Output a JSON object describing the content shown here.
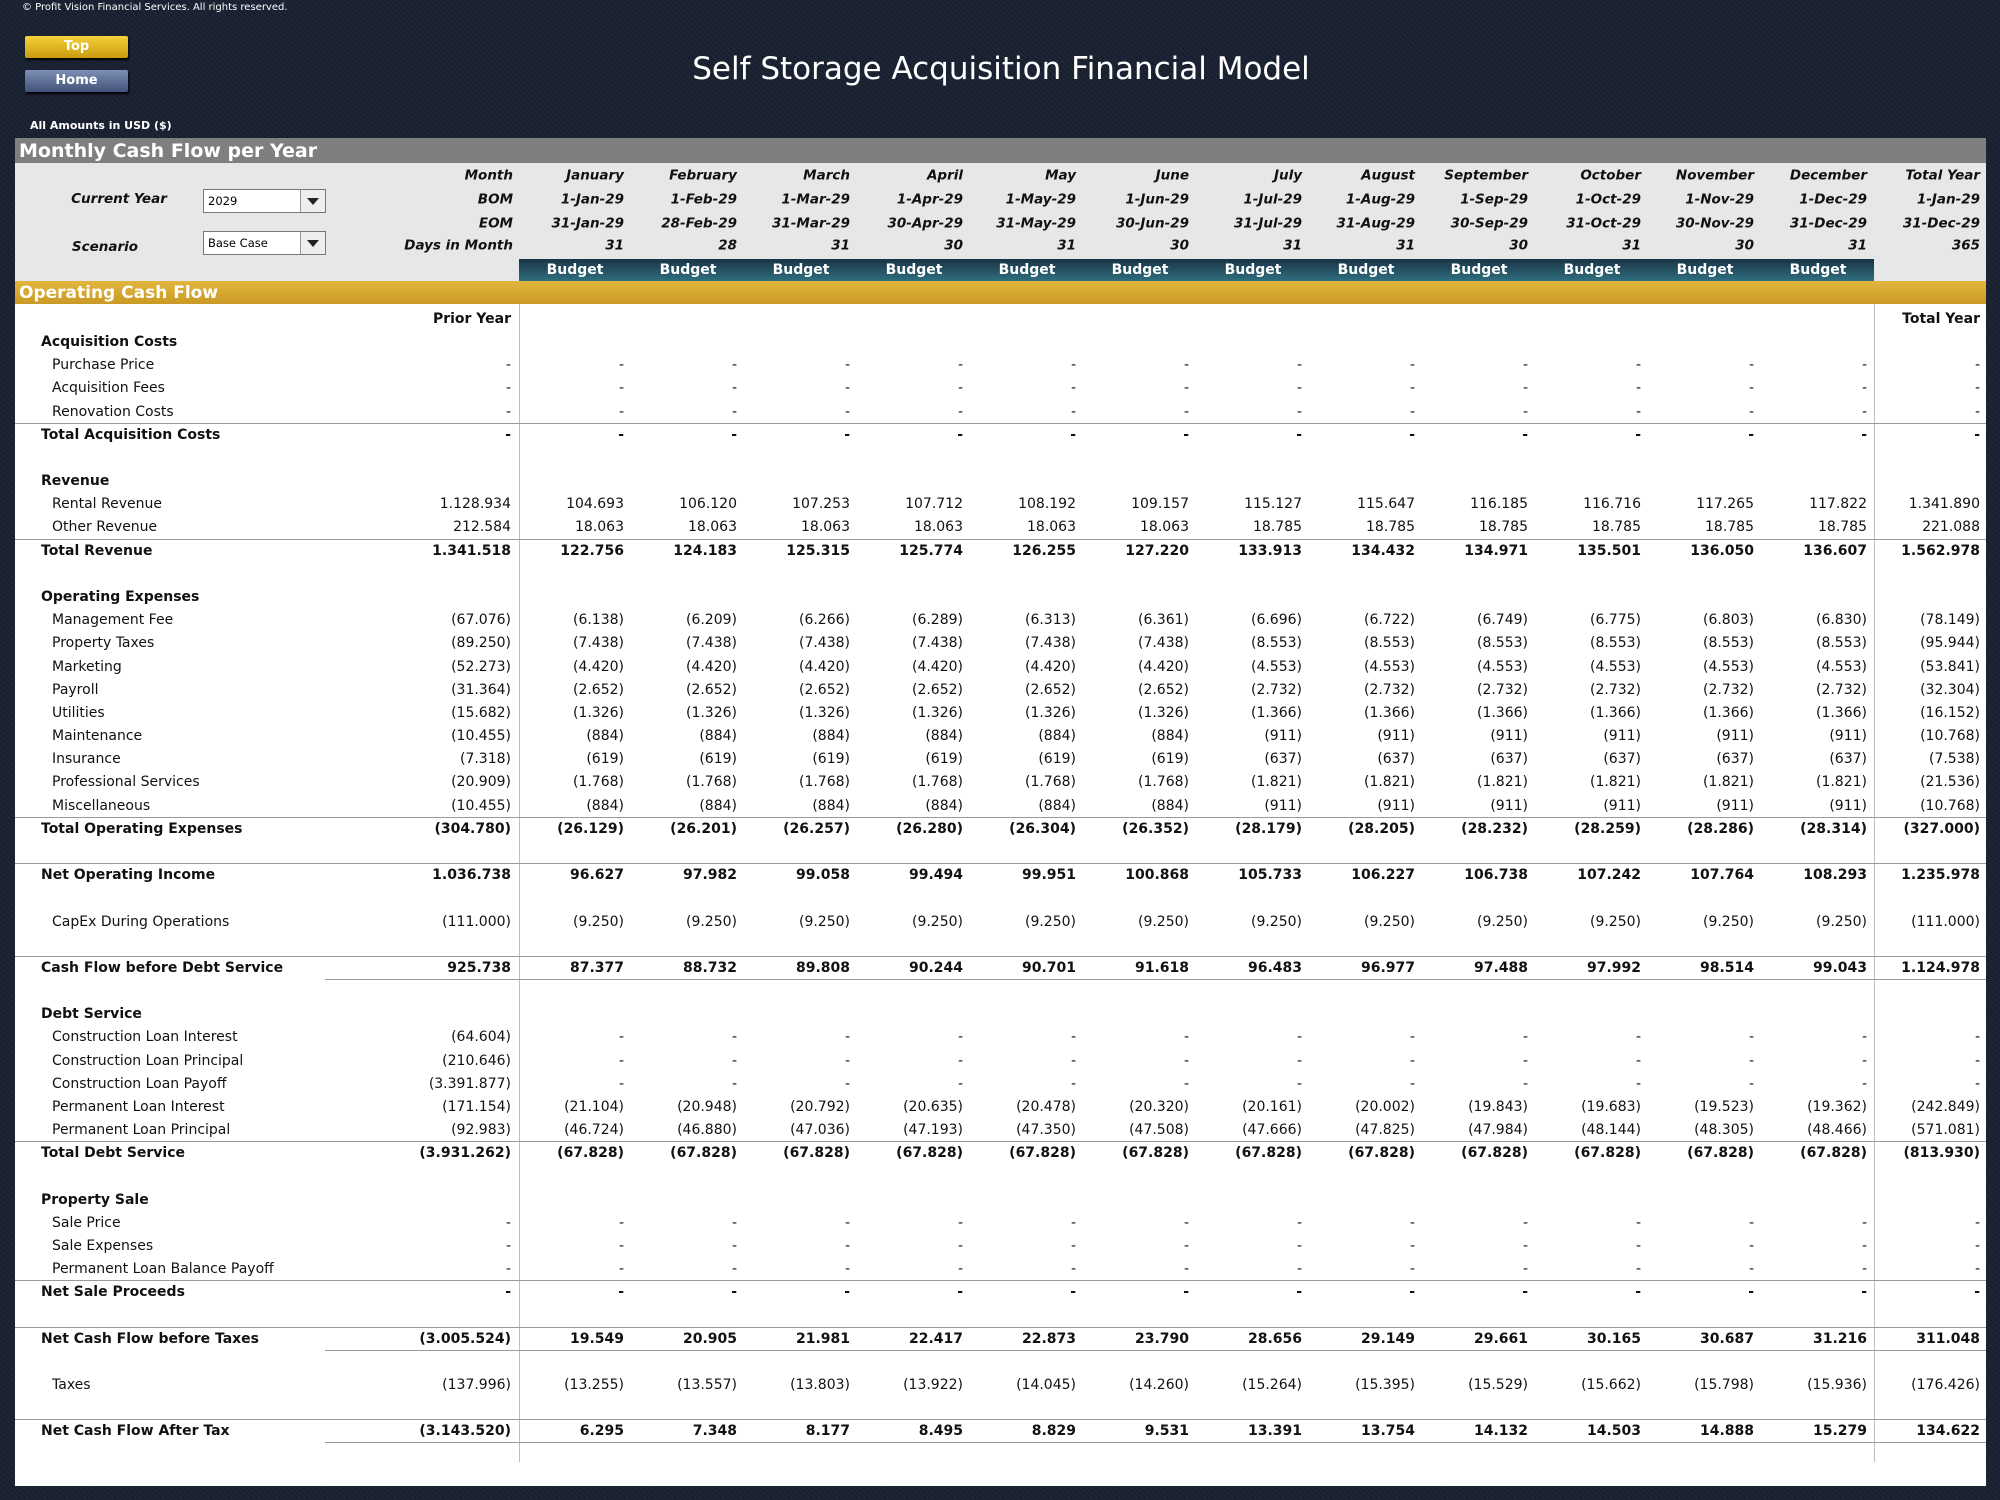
{
  "header": {
    "copyright": "© Profit Vision Financial Services. All rights reserved.",
    "title": "Self Storage Acquisition Financial Model",
    "buttons": [
      "Top",
      "Home"
    ],
    "amounts_note": "All Amounts in  USD ($)"
  },
  "section_title": "Monthly Cash Flow per Year",
  "controls": {
    "current_year_label": "Current Year",
    "current_year": "2029",
    "scenario_label": "Scenario",
    "scenario": "Base Case"
  },
  "period_header": {
    "row_labels": [
      "Month",
      "BOM",
      "EOM",
      "Days in Month"
    ],
    "columns": [
      {
        "month": "January",
        "bom": "1-Jan-29",
        "eom": "31-Jan-29",
        "days": 31,
        "budget": "Budget"
      },
      {
        "month": "February",
        "bom": "1-Feb-29",
        "eom": "28-Feb-29",
        "days": 28,
        "budget": "Budget"
      },
      {
        "month": "March",
        "bom": "1-Mar-29",
        "eom": "31-Mar-29",
        "days": 31,
        "budget": "Budget"
      },
      {
        "month": "April",
        "bom": "1-Apr-29",
        "eom": "30-Apr-29",
        "days": 30,
        "budget": "Budget"
      },
      {
        "month": "May",
        "bom": "1-May-29",
        "eom": "31-May-29",
        "days": 31,
        "budget": "Budget"
      },
      {
        "month": "June",
        "bom": "1-Jun-29",
        "eom": "30-Jun-29",
        "days": 30,
        "budget": "Budget"
      },
      {
        "month": "July",
        "bom": "1-Jul-29",
        "eom": "31-Jul-29",
        "days": 31,
        "budget": "Budget"
      },
      {
        "month": "August",
        "bom": "1-Aug-29",
        "eom": "31-Aug-29",
        "days": 31,
        "budget": "Budget"
      },
      {
        "month": "September",
        "bom": "1-Sep-29",
        "eom": "30-Sep-29",
        "days": 30,
        "budget": "Budget"
      },
      {
        "month": "October",
        "bom": "1-Oct-29",
        "eom": "31-Oct-29",
        "days": 31,
        "budget": "Budget"
      },
      {
        "month": "November",
        "bom": "1-Nov-29",
        "eom": "30-Nov-29",
        "days": 30,
        "budget": "Budget"
      },
      {
        "month": "December",
        "bom": "1-Dec-29",
        "eom": "31-Dec-29",
        "days": 31,
        "budget": "Budget"
      },
      {
        "month": "Total Year",
        "bom": "1-Jan-29",
        "eom": "31-Dec-29",
        "days": 365
      }
    ]
  },
  "table": {
    "title": "Operating Cash Flow",
    "prior_year_label": "Prior Year",
    "total_year_label": "Total Year",
    "rows": [
      {
        "label": "Acquisition Costs",
        "kind": "section"
      },
      {
        "label": "Purchase Price",
        "kind": "item",
        "values": [
          "-",
          "-",
          "-",
          "-",
          "-",
          "-",
          "-",
          "-",
          "-",
          "-",
          "-",
          "-",
          "-",
          "-"
        ]
      },
      {
        "label": "Acquisition Fees",
        "kind": "item",
        "values": [
          "-",
          "-",
          "-",
          "-",
          "-",
          "-",
          "-",
          "-",
          "-",
          "-",
          "-",
          "-",
          "-",
          "-"
        ]
      },
      {
        "label": "Renovation Costs",
        "kind": "item",
        "values": [
          "-",
          "-",
          "-",
          "-",
          "-",
          "-",
          "-",
          "-",
          "-",
          "-",
          "-",
          "-",
          "-",
          "-"
        ]
      },
      {
        "label": "Total Acquisition Costs",
        "kind": "total",
        "values": [
          "-",
          "-",
          "-",
          "-",
          "-",
          "-",
          "-",
          "-",
          "-",
          "-",
          "-",
          "-",
          "-",
          "-"
        ]
      },
      {
        "label": "Revenue",
        "kind": "section"
      },
      {
        "label": "Rental Revenue",
        "kind": "item",
        "values": [
          "1.128.934",
          "104.693",
          "106.120",
          "107.253",
          "107.712",
          "108.192",
          "109.157",
          "115.127",
          "115.647",
          "116.185",
          "116.716",
          "117.265",
          "117.822",
          "1.341.890"
        ]
      },
      {
        "label": "Other Revenue",
        "kind": "item",
        "values": [
          "212.584",
          "18.063",
          "18.063",
          "18.063",
          "18.063",
          "18.063",
          "18.063",
          "18.785",
          "18.785",
          "18.785",
          "18.785",
          "18.785",
          "18.785",
          "221.088"
        ]
      },
      {
        "label": "Total Revenue",
        "kind": "total",
        "values": [
          "1.341.518",
          "122.756",
          "124.183",
          "125.315",
          "125.774",
          "126.255",
          "127.220",
          "133.913",
          "134.432",
          "134.971",
          "135.501",
          "136.050",
          "136.607",
          "1.562.978"
        ]
      },
      {
        "label": "Operating Expenses",
        "kind": "section"
      },
      {
        "label": "Management Fee",
        "kind": "item",
        "values": [
          "(67.076)",
          "(6.138)",
          "(6.209)",
          "(6.266)",
          "(6.289)",
          "(6.313)",
          "(6.361)",
          "(6.696)",
          "(6.722)",
          "(6.749)",
          "(6.775)",
          "(6.803)",
          "(6.830)",
          "(78.149)"
        ]
      },
      {
        "label": "Property Taxes",
        "kind": "item",
        "values": [
          "(89.250)",
          "(7.438)",
          "(7.438)",
          "(7.438)",
          "(7.438)",
          "(7.438)",
          "(7.438)",
          "(8.553)",
          "(8.553)",
          "(8.553)",
          "(8.553)",
          "(8.553)",
          "(8.553)",
          "(95.944)"
        ]
      },
      {
        "label": "Marketing",
        "kind": "item",
        "values": [
          "(52.273)",
          "(4.420)",
          "(4.420)",
          "(4.420)",
          "(4.420)",
          "(4.420)",
          "(4.420)",
          "(4.553)",
          "(4.553)",
          "(4.553)",
          "(4.553)",
          "(4.553)",
          "(4.553)",
          "(53.841)"
        ]
      },
      {
        "label": "Payroll",
        "kind": "item",
        "values": [
          "(31.364)",
          "(2.652)",
          "(2.652)",
          "(2.652)",
          "(2.652)",
          "(2.652)",
          "(2.652)",
          "(2.732)",
          "(2.732)",
          "(2.732)",
          "(2.732)",
          "(2.732)",
          "(2.732)",
          "(32.304)"
        ]
      },
      {
        "label": "Utilities",
        "kind": "item",
        "values": [
          "(15.682)",
          "(1.326)",
          "(1.326)",
          "(1.326)",
          "(1.326)",
          "(1.326)",
          "(1.326)",
          "(1.366)",
          "(1.366)",
          "(1.366)",
          "(1.366)",
          "(1.366)",
          "(1.366)",
          "(16.152)"
        ]
      },
      {
        "label": "Maintenance",
        "kind": "item",
        "values": [
          "(10.455)",
          "(884)",
          "(884)",
          "(884)",
          "(884)",
          "(884)",
          "(884)",
          "(911)",
          "(911)",
          "(911)",
          "(911)",
          "(911)",
          "(911)",
          "(10.768)"
        ]
      },
      {
        "label": "Insurance",
        "kind": "item",
        "values": [
          "(7.318)",
          "(619)",
          "(619)",
          "(619)",
          "(619)",
          "(619)",
          "(619)",
          "(637)",
          "(637)",
          "(637)",
          "(637)",
          "(637)",
          "(637)",
          "(7.538)"
        ]
      },
      {
        "label": "Professional Services",
        "kind": "item",
        "values": [
          "(20.909)",
          "(1.768)",
          "(1.768)",
          "(1.768)",
          "(1.768)",
          "(1.768)",
          "(1.768)",
          "(1.821)",
          "(1.821)",
          "(1.821)",
          "(1.821)",
          "(1.821)",
          "(1.821)",
          "(21.536)"
        ]
      },
      {
        "label": "Miscellaneous",
        "kind": "item",
        "values": [
          "(10.455)",
          "(884)",
          "(884)",
          "(884)",
          "(884)",
          "(884)",
          "(884)",
          "(911)",
          "(911)",
          "(911)",
          "(911)",
          "(911)",
          "(911)",
          "(10.768)"
        ]
      },
      {
        "label": "Total Operating Expenses",
        "kind": "total",
        "values": [
          "(304.780)",
          "(26.129)",
          "(26.201)",
          "(26.257)",
          "(26.280)",
          "(26.304)",
          "(26.352)",
          "(28.179)",
          "(28.205)",
          "(28.232)",
          "(28.259)",
          "(28.286)",
          "(28.314)",
          "(327.000)"
        ]
      },
      {
        "label": "Net Operating Income",
        "kind": "result",
        "values": [
          "1.036.738",
          "96.627",
          "97.982",
          "99.058",
          "99.494",
          "99.951",
          "100.868",
          "105.733",
          "106.227",
          "106.738",
          "107.242",
          "107.764",
          "108.293",
          "1.235.978"
        ]
      },
      {
        "label": "CapEx During Operations",
        "kind": "standalone",
        "values": [
          "(111.000)",
          "(9.250)",
          "(9.250)",
          "(9.250)",
          "(9.250)",
          "(9.250)",
          "(9.250)",
          "(9.250)",
          "(9.250)",
          "(9.250)",
          "(9.250)",
          "(9.250)",
          "(9.250)",
          "(111.000)"
        ]
      },
      {
        "label": "Cash Flow before Debt Service",
        "kind": "key",
        "values": [
          "925.738",
          "87.377",
          "88.732",
          "89.808",
          "90.244",
          "90.701",
          "91.618",
          "96.483",
          "96.977",
          "97.488",
          "97.992",
          "98.514",
          "99.043",
          "1.124.978"
        ]
      },
      {
        "label": "Debt Service",
        "kind": "section"
      },
      {
        "label": "Construction Loan Interest",
        "kind": "item",
        "values": [
          "(64.604)",
          "-",
          "-",
          "-",
          "-",
          "-",
          "-",
          "-",
          "-",
          "-",
          "-",
          "-",
          "-",
          "-"
        ]
      },
      {
        "label": "Construction Loan Principal",
        "kind": "item",
        "values": [
          "(210.646)",
          "-",
          "-",
          "-",
          "-",
          "-",
          "-",
          "-",
          "-",
          "-",
          "-",
          "-",
          "-",
          "-"
        ]
      },
      {
        "label": "Construction Loan Payoff",
        "kind": "item",
        "values": [
          "(3.391.877)",
          "-",
          "-",
          "-",
          "-",
          "-",
          "-",
          "-",
          "-",
          "-",
          "-",
          "-",
          "-",
          "-"
        ]
      },
      {
        "label": "Permanent Loan Interest",
        "kind": "item",
        "values": [
          "(171.154)",
          "(21.104)",
          "(20.948)",
          "(20.792)",
          "(20.635)",
          "(20.478)",
          "(20.320)",
          "(20.161)",
          "(20.002)",
          "(19.843)",
          "(19.683)",
          "(19.523)",
          "(19.362)",
          "(242.849)"
        ]
      },
      {
        "label": "Permanent Loan Principal",
        "kind": "item",
        "values": [
          "(92.983)",
          "(46.724)",
          "(46.880)",
          "(47.036)",
          "(47.193)",
          "(47.350)",
          "(47.508)",
          "(47.666)",
          "(47.825)",
          "(47.984)",
          "(48.144)",
          "(48.305)",
          "(48.466)",
          "(571.081)"
        ]
      },
      {
        "label": "Total Debt Service",
        "kind": "total",
        "values": [
          "(3.931.262)",
          "(67.828)",
          "(67.828)",
          "(67.828)",
          "(67.828)",
          "(67.828)",
          "(67.828)",
          "(67.828)",
          "(67.828)",
          "(67.828)",
          "(67.828)",
          "(67.828)",
          "(67.828)",
          "(813.930)"
        ]
      },
      {
        "label": "Property Sale",
        "kind": "section"
      },
      {
        "label": "Sale Price",
        "kind": "item",
        "values": [
          "-",
          "-",
          "-",
          "-",
          "-",
          "-",
          "-",
          "-",
          "-",
          "-",
          "-",
          "-",
          "-",
          "-"
        ]
      },
      {
        "label": "Sale Expenses",
        "kind": "item",
        "values": [
          "-",
          "-",
          "-",
          "-",
          "-",
          "-",
          "-",
          "-",
          "-",
          "-",
          "-",
          "-",
          "-",
          "-"
        ]
      },
      {
        "label": "Permanent Loan Balance Payoff",
        "kind": "item",
        "values": [
          "-",
          "-",
          "-",
          "-",
          "-",
          "-",
          "-",
          "-",
          "-",
          "-",
          "-",
          "-",
          "-",
          "-"
        ]
      },
      {
        "label": "Net Sale Proceeds",
        "kind": "total",
        "values": [
          "-",
          "-",
          "-",
          "-",
          "-",
          "-",
          "-",
          "-",
          "-",
          "-",
          "-",
          "-",
          "-",
          "-"
        ]
      },
      {
        "label": "Net Cash Flow before Taxes",
        "kind": "key",
        "values": [
          "(3.005.524)",
          "19.549",
          "20.905",
          "21.981",
          "22.417",
          "22.873",
          "23.790",
          "28.656",
          "29.149",
          "29.661",
          "30.165",
          "30.687",
          "31.216",
          "311.048"
        ]
      },
      {
        "label": "Taxes",
        "kind": "standalone",
        "values": [
          "(137.996)",
          "(13.255)",
          "(13.557)",
          "(13.803)",
          "(13.922)",
          "(14.045)",
          "(14.260)",
          "(15.264)",
          "(15.395)",
          "(15.529)",
          "(15.662)",
          "(15.798)",
          "(15.936)",
          "(176.426)"
        ]
      },
      {
        "label": "Net Cash Flow After Tax",
        "kind": "key",
        "values": [
          "(3.143.520)",
          "6.295",
          "7.348",
          "8.177",
          "8.495",
          "8.829",
          "9.531",
          "13.391",
          "13.754",
          "14.132",
          "14.503",
          "14.888",
          "15.279",
          "134.622"
        ]
      }
    ]
  }
}
